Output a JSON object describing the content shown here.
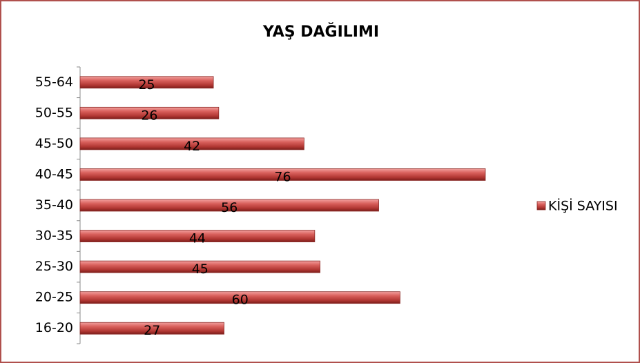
{
  "chart_data": {
    "type": "bar",
    "orientation": "horizontal",
    "title": "YAŞ DAĞILIMI",
    "categories": [
      "16-20",
      "20-25",
      "25-30",
      "30-35",
      "35-40",
      "40-45",
      "45-50",
      "50-55",
      "55-64"
    ],
    "series": [
      {
        "name": "KİŞİ SAYISI",
        "color": "#c0504d",
        "values": [
          27,
          60,
          45,
          44,
          56,
          76,
          42,
          26,
          25
        ]
      }
    ],
    "legend": "right"
  }
}
